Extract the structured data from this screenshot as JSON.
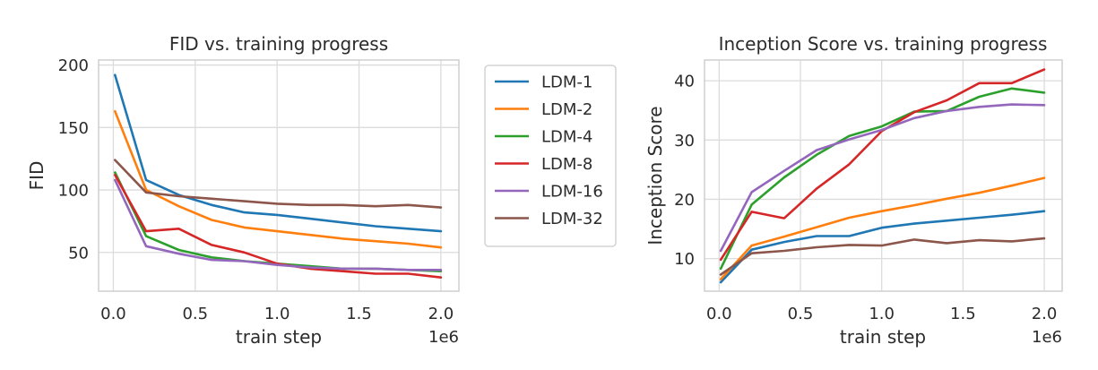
{
  "chart_data": [
    {
      "type": "line",
      "title": "FID vs. training progress",
      "xlabel": "train step",
      "ylabel": "FID",
      "x_offset_label": "1e6",
      "xlim": [
        -0.09,
        2.11
      ],
      "ylim": [
        19,
        204
      ],
      "xticks": [
        0.0,
        0.5,
        1.0,
        1.5,
        2.0
      ],
      "xtick_labels": [
        "0.0",
        "0.5",
        "1.0",
        "1.5",
        "2.0"
      ],
      "yticks": [
        50,
        100,
        150,
        200
      ],
      "ytick_labels": [
        "50",
        "100",
        "150",
        "200"
      ],
      "grid": true,
      "x": [
        0.01,
        0.2,
        0.4,
        0.6,
        0.8,
        1.0,
        1.2,
        1.4,
        1.6,
        1.8,
        2.0
      ],
      "series": [
        {
          "name": "LDM-1",
          "color": "#1f77b4",
          "values": [
            192,
            108,
            96,
            88,
            82,
            80,
            77,
            74,
            71,
            69,
            67
          ]
        },
        {
          "name": "LDM-2",
          "color": "#ff7f0e",
          "values": [
            163,
            100,
            87,
            76,
            70,
            67,
            64,
            61,
            59,
            57,
            54
          ]
        },
        {
          "name": "LDM-4",
          "color": "#2ca02c",
          "values": [
            114,
            63,
            52,
            46,
            43,
            41,
            39,
            37,
            37,
            36,
            35
          ]
        },
        {
          "name": "LDM-8",
          "color": "#d62728",
          "values": [
            112,
            67,
            69,
            56,
            50,
            41,
            37,
            35,
            33,
            33,
            30
          ]
        },
        {
          "name": "LDM-16",
          "color": "#9467bd",
          "values": [
            108,
            55,
            49,
            44,
            43,
            40,
            38,
            37,
            37,
            36,
            36
          ]
        },
        {
          "name": "LDM-32",
          "color": "#8c564b",
          "values": [
            124,
            98,
            95,
            93,
            91,
            89,
            88,
            88,
            87,
            88,
            86
          ]
        }
      ]
    },
    {
      "type": "line",
      "title": "Inception Score vs. training progress",
      "xlabel": "train step",
      "ylabel": "Inception Score",
      "x_offset_label": "1e6",
      "xlim": [
        -0.09,
        2.11
      ],
      "ylim": [
        4.5,
        43.5
      ],
      "xticks": [
        0.0,
        0.5,
        1.0,
        1.5,
        2.0
      ],
      "xtick_labels": [
        "0.0",
        "0.5",
        "1.0",
        "1.5",
        "2.0"
      ],
      "yticks": [
        10,
        20,
        30,
        40
      ],
      "ytick_labels": [
        "10",
        "20",
        "30",
        "40"
      ],
      "grid": true,
      "x": [
        0.01,
        0.2,
        0.4,
        0.6,
        0.8,
        1.0,
        1.2,
        1.4,
        1.6,
        1.8,
        2.0
      ],
      "series": [
        {
          "name": "LDM-1",
          "color": "#1f77b4",
          "values": [
            6.0,
            11.5,
            12.8,
            13.8,
            13.8,
            15.2,
            15.9,
            16.4,
            16.9,
            17.4,
            18.0
          ]
        },
        {
          "name": "LDM-2",
          "color": "#ff7f0e",
          "values": [
            6.5,
            12.2,
            13.7,
            15.3,
            16.9,
            18.0,
            19.0,
            20.1,
            21.1,
            22.3,
            23.6
          ]
        },
        {
          "name": "LDM-4",
          "color": "#2ca02c",
          "values": [
            8.3,
            19.1,
            23.7,
            27.5,
            30.7,
            32.3,
            34.8,
            34.9,
            37.3,
            38.7,
            38.0
          ]
        },
        {
          "name": "LDM-8",
          "color": "#d62728",
          "values": [
            9.8,
            17.9,
            16.8,
            21.8,
            25.9,
            31.5,
            34.7,
            36.7,
            39.6,
            39.6,
            41.9
          ]
        },
        {
          "name": "LDM-16",
          "color": "#9467bd",
          "values": [
            11.3,
            21.2,
            24.8,
            28.3,
            30.1,
            31.7,
            33.7,
            34.9,
            35.6,
            36.0,
            35.9
          ]
        },
        {
          "name": "LDM-32",
          "color": "#8c564b",
          "values": [
            7.3,
            10.9,
            11.3,
            11.9,
            12.3,
            12.2,
            13.2,
            12.6,
            13.1,
            12.9,
            13.4
          ]
        }
      ]
    }
  ],
  "legend": {
    "placement": "between-panels-top",
    "entries": [
      "LDM-1",
      "LDM-2",
      "LDM-4",
      "LDM-8",
      "LDM-16",
      "LDM-32"
    ],
    "colors": [
      "#1f77b4",
      "#ff7f0e",
      "#2ca02c",
      "#d62728",
      "#9467bd",
      "#8c564b"
    ]
  }
}
